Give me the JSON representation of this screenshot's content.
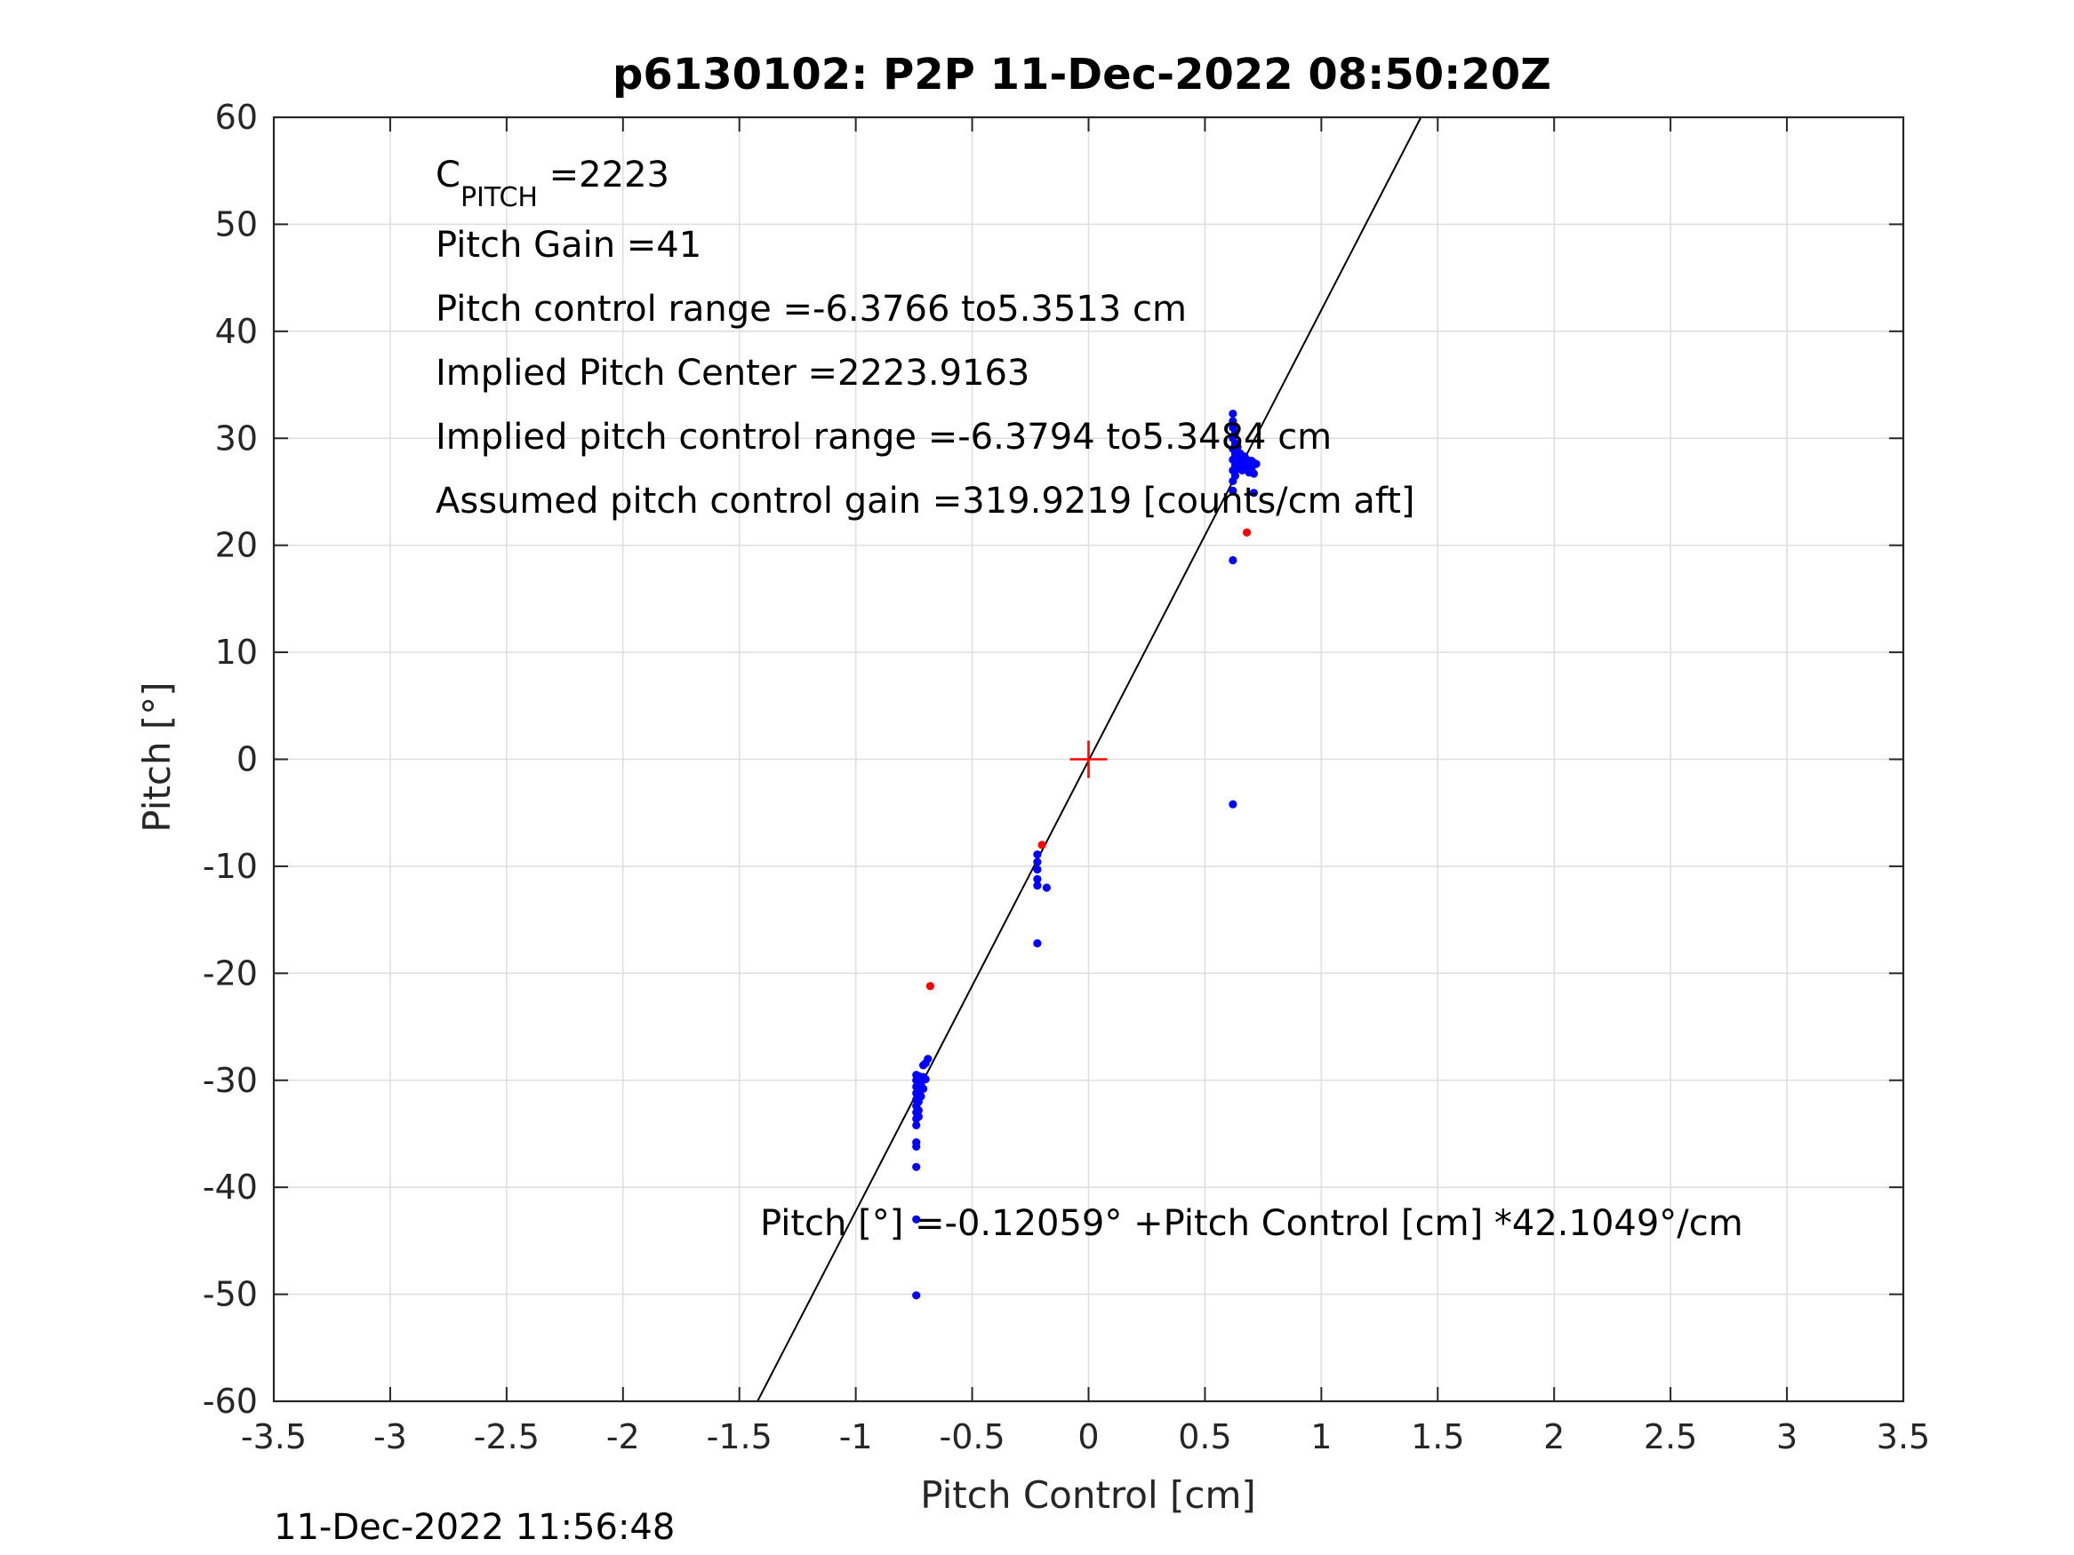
{
  "chart_data": {
    "type": "scatter",
    "title": "p6130102: P2P 11-Dec-2022 08:50:20Z",
    "xlabel": "Pitch Control [cm]",
    "ylabel": "Pitch [°]",
    "xlim": [
      -3.5,
      3.5
    ],
    "ylim": [
      -60,
      60
    ],
    "xticks": [
      -3.5,
      -3,
      -2.5,
      -2,
      -1.5,
      -1,
      -0.5,
      0,
      0.5,
      1,
      1.5,
      2,
      2.5,
      3,
      3.5
    ],
    "yticks": [
      -60,
      -50,
      -40,
      -30,
      -20,
      -10,
      0,
      10,
      20,
      30,
      40,
      50,
      60
    ],
    "xtick_labels": [
      "-3.5",
      "-3",
      "-2.5",
      "-2",
      "-1.5",
      "-1",
      "-0.5",
      "0",
      "0.5",
      "1",
      "1.5",
      "2",
      "2.5",
      "3",
      "3.5"
    ],
    "ytick_labels": [
      "-60",
      "-50",
      "-40",
      "-30",
      "-20",
      "-10",
      "0",
      "10",
      "20",
      "30",
      "40",
      "50",
      "60"
    ],
    "grid": true,
    "annotations": {
      "c_pitch_main": "C",
      "c_pitch_sub": "PITCH",
      "c_pitch_value": " =2223",
      "pitch_gain": "Pitch Gain =41",
      "control_range": "Pitch control range =-6.3766 to5.3513 cm",
      "implied_center": "Implied Pitch Center =2223.9163",
      "implied_range": "Implied pitch control range =-6.3794 to5.3484 cm",
      "assumed_gain": "Assumed pitch control gain =319.9219 [counts/cm aft]",
      "fit_equation": "Pitch [°] =-0.12059° +Pitch Control [cm] *42.1049°/cm"
    },
    "fit_line": {
      "intercept": -0.12059,
      "slope": 42.1049
    },
    "center_marker": {
      "x": 0,
      "y": 0,
      "color": "#ff0000"
    },
    "series": [
      {
        "color": "#0000ff",
        "points": [
          [
            -0.74,
            -50.1
          ],
          [
            -0.74,
            -43.0
          ],
          [
            -0.74,
            -38.1
          ],
          [
            -0.74,
            -36.2
          ],
          [
            -0.74,
            -35.8
          ],
          [
            -0.74,
            -34.2
          ],
          [
            -0.74,
            -33.6
          ],
          [
            -0.74,
            -33.0
          ],
          [
            -0.74,
            -32.4
          ],
          [
            -0.74,
            -31.8
          ],
          [
            -0.74,
            -31.2
          ],
          [
            -0.74,
            -30.6
          ],
          [
            -0.74,
            -30.0
          ],
          [
            -0.74,
            -29.5
          ],
          [
            -0.73,
            -33.4
          ],
          [
            -0.73,
            -32.8
          ],
          [
            -0.73,
            -32.0
          ],
          [
            -0.73,
            -31.0
          ],
          [
            -0.73,
            -30.2
          ],
          [
            -0.73,
            -29.6
          ],
          [
            -0.72,
            -31.5
          ],
          [
            -0.72,
            -30.4
          ],
          [
            -0.72,
            -29.9
          ],
          [
            -0.71,
            -30.8
          ],
          [
            -0.71,
            -29.7
          ],
          [
            -0.71,
            -28.6
          ],
          [
            -0.7,
            -29.9
          ],
          [
            -0.7,
            -28.4
          ],
          [
            -0.69,
            -28.0
          ],
          [
            -0.22,
            -8.9
          ],
          [
            -0.22,
            -9.6
          ],
          [
            -0.22,
            -10.3
          ],
          [
            -0.22,
            -11.2
          ],
          [
            -0.22,
            -11.8
          ],
          [
            -0.22,
            -17.2
          ],
          [
            -0.18,
            -12.0
          ],
          [
            0.62,
            -4.2
          ],
          [
            0.62,
            18.6
          ],
          [
            0.62,
            25.1
          ],
          [
            0.62,
            26.0
          ],
          [
            0.62,
            27.0
          ],
          [
            0.62,
            28.0
          ],
          [
            0.62,
            29.0
          ],
          [
            0.62,
            30.0
          ],
          [
            0.62,
            31.0
          ],
          [
            0.62,
            31.6
          ],
          [
            0.62,
            32.3
          ],
          [
            0.63,
            26.5
          ],
          [
            0.63,
            27.5
          ],
          [
            0.63,
            28.5
          ],
          [
            0.63,
            29.5
          ],
          [
            0.63,
            30.5
          ],
          [
            0.64,
            27.2
          ],
          [
            0.64,
            28.2
          ],
          [
            0.64,
            29.2
          ],
          [
            0.65,
            27.8
          ],
          [
            0.65,
            28.6
          ],
          [
            0.66,
            27.0
          ],
          [
            0.66,
            28.0
          ],
          [
            0.67,
            27.5
          ],
          [
            0.67,
            28.3
          ],
          [
            0.68,
            27.2
          ],
          [
            0.68,
            28.0
          ],
          [
            0.69,
            26.8
          ],
          [
            0.69,
            27.6
          ],
          [
            0.7,
            27.9
          ],
          [
            0.7,
            27.1
          ],
          [
            0.71,
            26.7
          ],
          [
            0.71,
            27.7
          ],
          [
            0.71,
            24.9
          ],
          [
            0.72,
            27.6
          ]
        ]
      },
      {
        "color": "#ff0000",
        "points": [
          [
            -0.68,
            -21.2
          ],
          [
            -0.2,
            -8.0
          ],
          [
            0.68,
            21.2
          ]
        ]
      }
    ]
  },
  "footer": {
    "timestamp": "11-Dec-2022 11:56:48"
  }
}
